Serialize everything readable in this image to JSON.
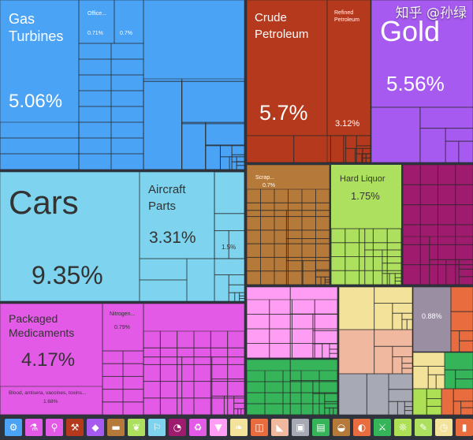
{
  "chart_data": {
    "type": "treemap",
    "labeled_items": [
      {
        "name": "Gas Turbines",
        "value": "5.06%",
        "color": "#4aa3f5"
      },
      {
        "name": "Office...",
        "value": "0.71%",
        "color": "#4aa3f5"
      },
      {
        "name": "",
        "value": "0.7%",
        "color": "#4aa3f5"
      },
      {
        "name": "Crude Petroleum",
        "value": "5.7%",
        "color": "#b5391c"
      },
      {
        "name": "Refined Petroleum",
        "value": "3.12%",
        "color": "#b5391c"
      },
      {
        "name": "Gold",
        "value": "5.56%",
        "color": "#a65af0"
      },
      {
        "name": "Cars",
        "value": "9.35%",
        "color": "#7ed4ef"
      },
      {
        "name": "Aircraft Parts",
        "value": "3.31%",
        "color": "#7ed4ef"
      },
      {
        "name": "",
        "value": "1.5%",
        "color": "#7ed4ef"
      },
      {
        "name": "Scrap...",
        "value": "0.7%",
        "color": "#b5793a"
      },
      {
        "name": "Hard Liquor",
        "value": "1.75%",
        "color": "#aee05f"
      },
      {
        "name": "Packaged Medicaments",
        "value": "4.17%",
        "color": "#e35ae6"
      },
      {
        "name": "Nitrogen...",
        "value": "0.79%",
        "color": "#e35ae6"
      },
      {
        "name": "Blood, antisera, vaccines, toxins...",
        "value": "1.68%",
        "color": "#e35ae6"
      },
      {
        "name": "",
        "value": "0.88%",
        "color": "#9a8ea3"
      }
    ],
    "group_colors": {
      "machines": "#4aa3f5",
      "mineral_products": "#b5391c",
      "precious_metals": "#a65af0",
      "transportation": "#7ed4ef",
      "metals": "#b5793a",
      "foodstuffs": "#aee05f",
      "chemical_products": "#e35ae6",
      "textiles": "#ff9cf3",
      "vegetable_products": "#f3e29a",
      "animal_products": "#f0b89e",
      "instruments": "#9a8ea3",
      "plastics_rubbers": "#e86c3e",
      "paper_goods": "#35b45a",
      "stone_glass": "#a7a9b5",
      "misc": "#ade055"
    }
  },
  "toolbar": {
    "categories": [
      {
        "icon": "gear-icon",
        "glyph": "⚙",
        "color": "#4aa3f5"
      },
      {
        "icon": "flask-icon",
        "glyph": "⚗",
        "color": "#e35ae6"
      },
      {
        "icon": "beaker-icon",
        "glyph": "⚲",
        "color": "#e35ae6"
      },
      {
        "icon": "pickaxe-icon",
        "glyph": "⚒",
        "color": "#b5391c"
      },
      {
        "icon": "gem-icon",
        "glyph": "◆",
        "color": "#a65af0"
      },
      {
        "icon": "anvil-icon",
        "glyph": "▬",
        "color": "#b5793a"
      },
      {
        "icon": "wheat-icon",
        "glyph": "❦",
        "color": "#aee05f"
      },
      {
        "icon": "car-icon",
        "glyph": "⚐",
        "color": "#7ed4ef"
      },
      {
        "icon": "gauge-icon",
        "glyph": "◔",
        "color": "#9e1b6e"
      },
      {
        "icon": "recycle-icon",
        "glyph": "♻",
        "color": "#e35ae6"
      },
      {
        "icon": "shirt-icon",
        "glyph": "▼",
        "color": "#ff9cf3"
      },
      {
        "icon": "leaf-icon",
        "glyph": "❧",
        "color": "#f3e29a"
      },
      {
        "icon": "chair-icon",
        "glyph": "◫",
        "color": "#e86c3e"
      },
      {
        "icon": "shoe-icon",
        "glyph": "◣",
        "color": "#f0b89e"
      },
      {
        "icon": "box-icon",
        "glyph": "▣",
        "color": "#a7a9b5"
      },
      {
        "icon": "easel-icon",
        "glyph": "▤",
        "color": "#35b45a"
      },
      {
        "icon": "pot-icon",
        "glyph": "◒",
        "color": "#b5793a"
      },
      {
        "icon": "fish-icon",
        "glyph": "◐",
        "color": "#e86c3e"
      },
      {
        "icon": "rifle-icon",
        "glyph": "⚔",
        "color": "#35b45a"
      },
      {
        "icon": "mill-icon",
        "glyph": "❊",
        "color": "#ade055"
      },
      {
        "icon": "dropper-icon",
        "glyph": "✎",
        "color": "#aee05f"
      },
      {
        "icon": "clock-icon",
        "glyph": "◷",
        "color": "#f3e29a"
      },
      {
        "icon": "bottle-icon",
        "glyph": "▮",
        "color": "#e86c3e"
      }
    ]
  },
  "watermark": "知乎 @孙绿"
}
